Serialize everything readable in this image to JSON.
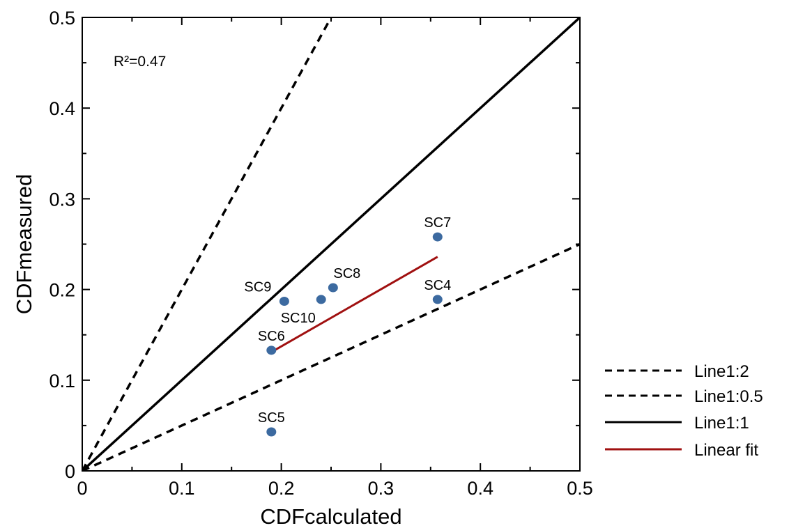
{
  "chart_data": {
    "type": "scatter",
    "xlabel": "CDFcalculated",
    "ylabel": "CDFmeasured",
    "xlim": [
      0,
      0.5
    ],
    "ylim": [
      0,
      0.5
    ],
    "x_ticks": [
      0,
      0.1,
      0.2,
      0.3,
      0.4,
      0.5
    ],
    "y_ticks": [
      0,
      0.1,
      0.2,
      0.3,
      0.4,
      0.5
    ],
    "x_tick_labels": [
      "0",
      "0.1",
      "0.2",
      "0.3",
      "0.4",
      "0.5"
    ],
    "y_tick_labels": [
      "0",
      "0.1",
      "0.2",
      "0.3",
      "0.4",
      "0.5"
    ],
    "grid": false,
    "legend_placement": "right",
    "annotation": "R²=0.47",
    "point_color": "#3c6aa0",
    "points": [
      {
        "label": "SC4",
        "x": 0.357,
        "y": 0.189
      },
      {
        "label": "SC5",
        "x": 0.19,
        "y": 0.043
      },
      {
        "label": "SC6",
        "x": 0.19,
        "y": 0.133
      },
      {
        "label": "SC7",
        "x": 0.357,
        "y": 0.258
      },
      {
        "label": "SC8",
        "x": 0.252,
        "y": 0.202
      },
      {
        "label": "SC9",
        "x": 0.203,
        "y": 0.187
      },
      {
        "label": "SC10",
        "x": 0.24,
        "y": 0.189
      }
    ],
    "lines": [
      {
        "name": "Line1:2",
        "style": "dashed",
        "color": "#000000",
        "points": [
          [
            0,
            0
          ],
          [
            0.25,
            0.5
          ]
        ]
      },
      {
        "name": "Line1:0.5",
        "style": "dashed",
        "color": "#000000",
        "points": [
          [
            0,
            0
          ],
          [
            0.5,
            0.25
          ]
        ]
      },
      {
        "name": "Line1:1",
        "style": "solid",
        "color": "#000000",
        "points": [
          [
            0,
            0
          ],
          [
            0.5,
            0.5
          ]
        ]
      },
      {
        "name": "Linear fit",
        "style": "solid",
        "color": "#a01010",
        "points": [
          [
            0.19,
            0.131
          ],
          [
            0.357,
            0.236
          ]
        ]
      }
    ]
  }
}
